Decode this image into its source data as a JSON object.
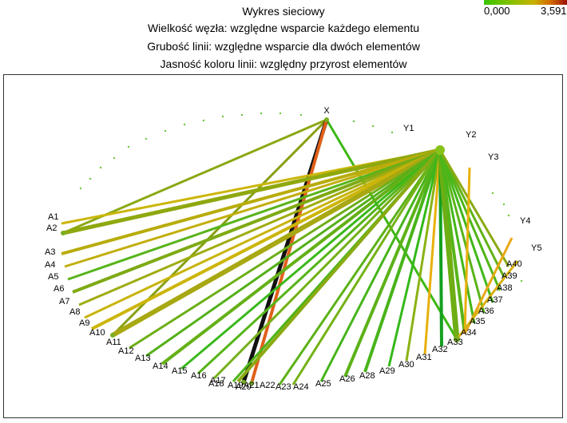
{
  "titles": [
    "Wykres sieciowy",
    "Wielkość węzła: względne wsparcie każdego elementu",
    "Grubość linii: względne wsparcie dla dwóch elementów",
    "Jasność koloru linii: względny przyrost elementów"
  ],
  "legend": {
    "min": "0,000",
    "max": "3,591"
  },
  "nodes": [
    "X",
    "Y1",
    "Y2",
    "Y3",
    "Y4",
    "Y5",
    "A1",
    "A2",
    "A3",
    "A4",
    "A5",
    "A6",
    "A7",
    "A8",
    "A9",
    "A10",
    "A11",
    "A12",
    "A13",
    "A14",
    "A15",
    "A16",
    "A17",
    "A18",
    "A19",
    "A20",
    "A21",
    "A22",
    "A23",
    "A24",
    "A25",
    "A26",
    "A28",
    "A29",
    "A30",
    "A31",
    "A32",
    "A33",
    "A34",
    "A35",
    "A36",
    "A37",
    "A38",
    "A39",
    "A40"
  ],
  "edges": [
    {
      "from": "X",
      "to": "A2",
      "color": "#8aa812",
      "w": 3
    },
    {
      "from": "X",
      "to": "A11",
      "color": "#86a010",
      "w": 3
    },
    {
      "from": "X",
      "to": "A33",
      "color": "#3cb814",
      "w": 3
    },
    {
      "from": "X",
      "to": "A21",
      "color": "#111111",
      "w": 5
    },
    {
      "from": "X",
      "to": "A22",
      "color": "#e0601a",
      "w": 4
    },
    {
      "from": "Y2",
      "to": "A1",
      "color": "#cbb60a",
      "w": 3
    },
    {
      "from": "Y2",
      "to": "A2",
      "color": "#8ea80e",
      "w": 5
    },
    {
      "from": "Y2",
      "to": "A3",
      "color": "#b8ac0c",
      "w": 4
    },
    {
      "from": "Y2",
      "to": "A4",
      "color": "#c2ae0c",
      "w": 3
    },
    {
      "from": "Y2",
      "to": "A5",
      "color": "#58b41a",
      "w": 3
    },
    {
      "from": "Y2",
      "to": "A6",
      "color": "#7eaa14",
      "w": 4
    },
    {
      "from": "Y2",
      "to": "A7",
      "color": "#9eac10",
      "w": 3
    },
    {
      "from": "Y2",
      "to": "A8",
      "color": "#c8b40a",
      "w": 3
    },
    {
      "from": "Y2",
      "to": "A9",
      "color": "#ccb508",
      "w": 4
    },
    {
      "from": "Y2",
      "to": "A11",
      "color": "#a8a812",
      "w": 6
    },
    {
      "from": "Y2",
      "to": "A12",
      "color": "#6cae16",
      "w": 3
    },
    {
      "from": "Y2",
      "to": "A13",
      "color": "#54b018",
      "w": 3
    },
    {
      "from": "Y2",
      "to": "A14",
      "color": "#64b016",
      "w": 4
    },
    {
      "from": "Y2",
      "to": "A15",
      "color": "#3ab81a",
      "w": 3
    },
    {
      "from": "Y2",
      "to": "A16",
      "color": "#56b418",
      "w": 3
    },
    {
      "from": "Y2",
      "to": "A17",
      "color": "#72b016",
      "w": 3
    },
    {
      "from": "Y2",
      "to": "A19",
      "color": "#4cb418",
      "w": 3
    },
    {
      "from": "Y2",
      "to": "A20",
      "color": "#8aaa12",
      "w": 4
    },
    {
      "from": "Y2",
      "to": "A23",
      "color": "#5cb218",
      "w": 3
    },
    {
      "from": "Y2",
      "to": "A24",
      "color": "#74b216",
      "w": 3
    },
    {
      "from": "Y2",
      "to": "A25",
      "color": "#46b41a",
      "w": 3
    },
    {
      "from": "Y2",
      "to": "A26",
      "color": "#5cb218",
      "w": 4
    },
    {
      "from": "Y2",
      "to": "A28",
      "color": "#48b41a",
      "w": 4
    },
    {
      "from": "Y2",
      "to": "A29",
      "color": "#34b81a",
      "w": 3
    },
    {
      "from": "Y2",
      "to": "A30",
      "color": "#8ab214",
      "w": 3
    },
    {
      "from": "Y2",
      "to": "A31",
      "color": "#e8b00a",
      "w": 3
    },
    {
      "from": "Y2",
      "to": "A32",
      "color": "#14a020",
      "w": 4
    },
    {
      "from": "Y2",
      "to": "A33",
      "color": "#6eae14",
      "w": 7
    },
    {
      "from": "Y2",
      "to": "A34",
      "color": "#58b418",
      "w": 4
    },
    {
      "from": "Y2",
      "to": "A35",
      "color": "#44b618",
      "w": 3
    },
    {
      "from": "Y2",
      "to": "A36",
      "color": "#5ab418",
      "w": 3
    },
    {
      "from": "Y2",
      "to": "A37",
      "color": "#40b81a",
      "w": 3
    },
    {
      "from": "Y2",
      "to": "A38",
      "color": "#50b618",
      "w": 3
    },
    {
      "from": "Y2",
      "to": "A39",
      "color": "#62b216",
      "w": 3
    },
    {
      "from": "Y2",
      "to": "A40",
      "color": "#8aaa12",
      "w": 3
    },
    {
      "from": "Y3",
      "to": "A34",
      "color": "#e8b00a",
      "w": 3
    },
    {
      "from": "Y4",
      "to": "A34",
      "color": "#e8a818",
      "w": 3
    },
    {
      "from": "Y5",
      "to": "A33",
      "color": "#d8b010",
      "w": 3
    }
  ]
}
